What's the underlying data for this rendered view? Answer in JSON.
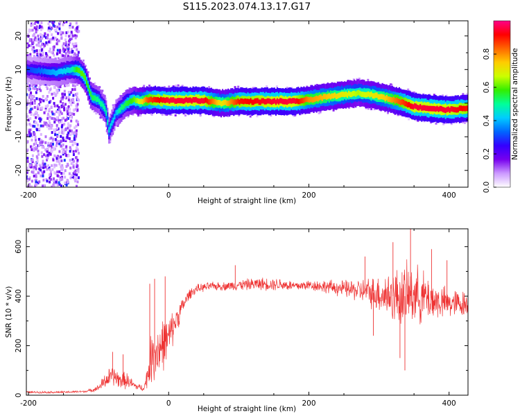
{
  "chart_data": [
    {
      "type": "heatmap",
      "title": "S115.2023.074.13.17.G17",
      "xlabel": "Height of straight line (km)",
      "ylabel": "Frequency (Hz)",
      "xlim": [
        -203,
        427
      ],
      "ylim": [
        -25,
        24.5
      ],
      "xticks": [
        -200,
        0,
        200,
        400
      ],
      "yticks": [
        20,
        10,
        0,
        -10,
        -20
      ],
      "colorbar": {
        "label": "Normalized spectral amplitude",
        "range": [
          0,
          1
        ],
        "ticks": [
          0.0,
          0.2,
          0.4,
          0.6,
          0.8
        ],
        "colors": [
          "#ffffff",
          "#cc99ff",
          "#7700ee",
          "#3300ff",
          "#0066ff",
          "#00ccff",
          "#00ff99",
          "#33ee00",
          "#ccff00",
          "#ffcc00",
          "#ff6600",
          "#ff0000",
          "#ff0088"
        ]
      },
      "ridge": {
        "x": [
          -200,
          -180,
          -160,
          -140,
          -130,
          -120,
          -110,
          -100,
          -90,
          -85,
          -75,
          -70,
          -60,
          -50,
          -40,
          -30,
          -20,
          0,
          20,
          50,
          75,
          100,
          150,
          180,
          200,
          230,
          250,
          270,
          290,
          310,
          330,
          350,
          370,
          400,
          427
        ],
        "y": [
          10,
          9.5,
          9,
          10,
          10,
          8,
          2,
          1,
          -2,
          -8,
          -3,
          -2,
          0,
          1,
          0.5,
          1,
          1,
          0.8,
          0.8,
          0.8,
          0,
          0.5,
          0.5,
          0.5,
          1,
          2,
          2.5,
          3,
          2.5,
          1.5,
          0.5,
          -1,
          -1.5,
          -2,
          -1.5
        ],
        "peak_amplitude": [
          0.3,
          0.35,
          0.4,
          0.45,
          0.6,
          0.6,
          0.55,
          0.5,
          0.5,
          0.45,
          0.4,
          0.5,
          0.55,
          0.6,
          0.7,
          0.85,
          0.9,
          0.95,
          0.95,
          0.95,
          0.7,
          0.9,
          0.95,
          0.95,
          0.8,
          0.75,
          0.7,
          0.65,
          0.7,
          0.75,
          0.85,
          0.95,
          0.95,
          0.95,
          0.9
        ]
      }
    },
    {
      "type": "line",
      "xlabel": "Height of straight line (km)",
      "ylabel": "SNR (10 * v/v)",
      "xlim": [
        -203,
        427
      ],
      "ylim": [
        0,
        672
      ],
      "xticks": [
        -200,
        0,
        200,
        400
      ],
      "yticks": [
        0,
        200,
        400,
        600
      ],
      "series": [
        {
          "color": "#ee3333",
          "envelope": {
            "x": [
              -203,
              -150,
              -120,
              -110,
              -100,
              -90,
              -80,
              -70,
              -60,
              -50,
              -40,
              -35,
              -30,
              -25,
              -20,
              -10,
              0,
              10,
              20,
              30,
              40,
              60,
              80,
              100,
              130,
              160,
              180,
              200,
              220,
              250,
              280,
              300,
              320,
              340,
              350,
              360,
              380,
              400,
              427
            ],
            "mean": [
              12,
              12,
              15,
              20,
              30,
              60,
              80,
              60,
              60,
              40,
              30,
              30,
              80,
              150,
              170,
              200,
              230,
              300,
              360,
              410,
              430,
              440,
              440,
              445,
              450,
              448,
              440,
              445,
              440,
              430,
              420,
              410,
              400,
              400,
              410,
              400,
              380,
              370,
              370
            ],
            "spread": [
              5,
              5,
              5,
              8,
              15,
              40,
              50,
              40,
              40,
              20,
              15,
              15,
              60,
              120,
              140,
              130,
              100,
              70,
              40,
              25,
              20,
              20,
              20,
              25,
              30,
              30,
              25,
              25,
              30,
              40,
              60,
              90,
              130,
              150,
              140,
              130,
              90,
              70,
              60
            ]
          },
          "spikes": [
            {
              "x": -80,
              "y": 175
            },
            {
              "x": -65,
              "y": 165
            },
            {
              "x": -27,
              "y": 450
            },
            {
              "x": -20,
              "y": 470
            },
            {
              "x": -5,
              "y": 480
            },
            {
              "x": 95,
              "y": 525
            },
            {
              "x": 280,
              "y": 560
            },
            {
              "x": 320,
              "y": 618
            },
            {
              "x": 345,
              "y": 672
            },
            {
              "x": 375,
              "y": 590
            },
            {
              "x": 397,
              "y": 545
            },
            {
              "x": 337,
              "y": 100
            },
            {
              "x": 330,
              "y": 150
            },
            {
              "x": 292,
              "y": 240
            }
          ]
        }
      ]
    }
  ]
}
